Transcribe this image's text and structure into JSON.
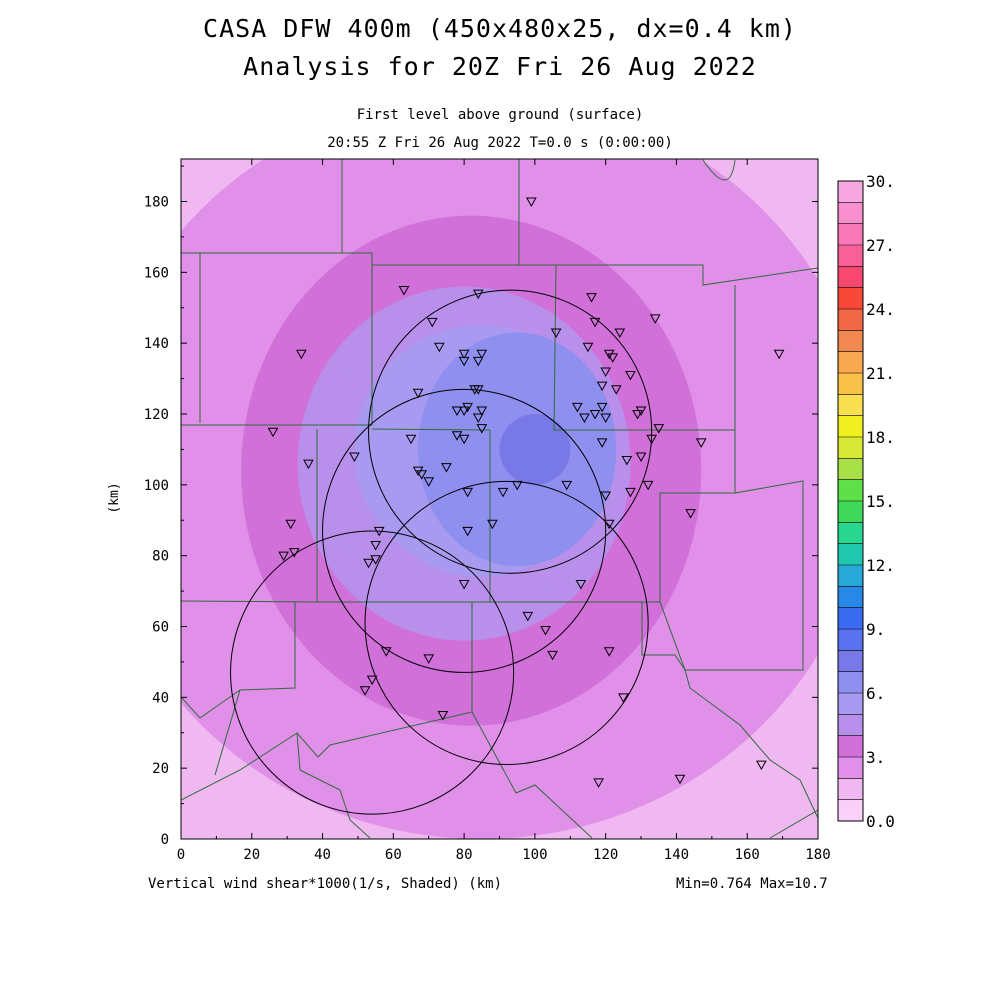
{
  "title_line1": "CASA DFW 400m (450x480x25, dx=0.4 km)",
  "title_line2": "Analysis for 20Z Fri 26 Aug 2022",
  "subtitle_line1": "First level above ground (surface)",
  "subtitle_line2": "20:55 Z Fri 26 Aug 2022   T=0.0 s (0:00:00)",
  "footer_left": "Vertical wind shear*1000(1/s, Shaded)  (km)",
  "footer_right": "Min=0.764 Max=10.7",
  "chart_data": {
    "type": "heatmap",
    "title": "CASA DFW 400m (450x480x25, dx=0.4 km)",
    "subtitle": "Analysis for 20Z Fri 26 Aug 2022",
    "xlabel": "(km)",
    "ylabel": "(km)",
    "xlim": [
      0,
      180
    ],
    "ylim": [
      0,
      192
    ],
    "x_ticks": [
      0,
      20,
      40,
      60,
      80,
      100,
      120,
      140,
      160,
      180
    ],
    "y_ticks": [
      0,
      20,
      40,
      60,
      80,
      100,
      120,
      140,
      160,
      180
    ],
    "field": "Vertical wind shear*1000(1/s, Shaded)",
    "min": 0.764,
    "max": 10.7,
    "colorbar": {
      "min": 0,
      "max": 30,
      "step": 1.5,
      "tick_labels": [
        "0.0",
        "3.",
        "6.",
        "9.",
        "12.",
        "15.",
        "18.",
        "21.",
        "24.",
        "27.",
        "30."
      ],
      "colors": [
        "#f8d0f8",
        "#f0b8f0",
        "#e090e8",
        "#d070d8",
        "#b890ec",
        "#a89af0",
        "#8f8ff0",
        "#7878e8",
        "#5a72f0",
        "#3a6af0",
        "#2888e8",
        "#28a8d8",
        "#20c8b0",
        "#28d890",
        "#40d858",
        "#60e048",
        "#a8e048",
        "#d8e838",
        "#f0f020",
        "#f8e050",
        "#f8c048",
        "#f8a850",
        "#f08850",
        "#f06848",
        "#f84838",
        "#f84870",
        "#f86098",
        "#f878b8",
        "#f890d0",
        "#f8a8e0"
      ]
    },
    "shading": [
      {
        "level": 1.5,
        "center": [
          89,
          104
        ],
        "rx": 150,
        "ry": 150
      },
      {
        "level": 3.0,
        "center": [
          85,
          105
        ],
        "rx": 110,
        "ry": 105
      },
      {
        "level": 4.5,
        "center": [
          82,
          104
        ],
        "rx": 65,
        "ry": 72
      },
      {
        "level": 5.25,
        "center": [
          81,
          106
        ],
        "rx": 52,
        "ry": 58
      },
      {
        "level": 6.0,
        "center": [
          80,
          106
        ],
        "rx": 47,
        "ry": 50
      },
      {
        "level": 6.75,
        "center": [
          80,
          106
        ],
        "rx": 40,
        "ry": 45
      },
      {
        "level": 7.5,
        "center": [
          85,
          110
        ],
        "rx": 36,
        "ry": 35
      },
      {
        "level": 8.25,
        "center": [
          85,
          106
        ],
        "rx": 33,
        "ry": 32
      },
      {
        "level": 9.0,
        "center": [
          95,
          110
        ],
        "rx": 28,
        "ry": 33
      },
      {
        "level": 9.75,
        "center": [
          97,
          115
        ],
        "rx": 20,
        "ry": 20
      },
      {
        "level": 10.5,
        "center": [
          100,
          110
        ],
        "rx": 10,
        "ry": 10
      }
    ],
    "radar_rings": [
      {
        "center": [
          93,
          115
        ],
        "radius": 40
      },
      {
        "center": [
          80,
          87
        ],
        "radius": 40
      },
      {
        "center": [
          92,
          61
        ],
        "radius": 40
      },
      {
        "center": [
          54,
          47
        ],
        "radius": 40
      }
    ],
    "stations": [
      [
        99,
        180
      ],
      [
        63,
        155
      ],
      [
        84,
        154
      ],
      [
        116,
        153
      ],
      [
        134,
        147
      ],
      [
        71,
        146
      ],
      [
        106,
        143
      ],
      [
        117,
        146
      ],
      [
        124,
        143
      ],
      [
        34,
        137
      ],
      [
        73,
        139
      ],
      [
        115,
        139
      ],
      [
        80,
        137
      ],
      [
        85,
        137
      ],
      [
        80,
        135
      ],
      [
        121,
        137
      ],
      [
        169,
        137
      ],
      [
        122,
        136
      ],
      [
        84,
        135
      ],
      [
        120,
        132
      ],
      [
        127,
        131
      ],
      [
        83,
        127
      ],
      [
        84,
        127
      ],
      [
        119,
        128
      ],
      [
        123,
        127
      ],
      [
        67,
        126
      ],
      [
        112,
        122
      ],
      [
        119,
        122
      ],
      [
        130,
        121
      ],
      [
        80,
        121
      ],
      [
        78,
        121
      ],
      [
        81,
        122
      ],
      [
        85,
        121
      ],
      [
        117,
        120
      ],
      [
        114,
        119
      ],
      [
        120,
        119
      ],
      [
        84,
        119
      ],
      [
        129,
        120
      ],
      [
        26,
        115
      ],
      [
        78,
        114
      ],
      [
        85,
        116
      ],
      [
        135,
        116
      ],
      [
        80,
        113
      ],
      [
        65,
        113
      ],
      [
        133,
        113
      ],
      [
        119,
        112
      ],
      [
        147,
        112
      ],
      [
        49,
        108
      ],
      [
        130,
        108
      ],
      [
        36,
        106
      ],
      [
        126,
        107
      ],
      [
        75,
        105
      ],
      [
        67,
        104
      ],
      [
        68,
        103
      ],
      [
        70,
        101
      ],
      [
        132,
        100
      ],
      [
        109,
        100
      ],
      [
        95,
        100
      ],
      [
        91,
        98
      ],
      [
        81,
        98
      ],
      [
        127,
        98
      ],
      [
        120,
        97
      ],
      [
        144,
        92
      ],
      [
        88,
        89
      ],
      [
        31,
        89
      ],
      [
        121,
        89
      ],
      [
        56,
        87
      ],
      [
        81,
        87
      ],
      [
        55,
        83
      ],
      [
        32,
        81
      ],
      [
        29,
        80
      ],
      [
        55,
        79
      ],
      [
        53,
        78
      ],
      [
        80,
        72
      ],
      [
        113,
        72
      ],
      [
        98,
        63
      ],
      [
        103,
        59
      ],
      [
        58,
        53
      ],
      [
        121,
        53
      ],
      [
        105,
        52
      ],
      [
        70,
        51
      ],
      [
        54,
        45
      ],
      [
        52,
        42
      ],
      [
        125,
        40
      ],
      [
        74,
        35
      ],
      [
        164,
        21
      ],
      [
        141,
        17
      ],
      [
        118,
        16
      ]
    ]
  }
}
